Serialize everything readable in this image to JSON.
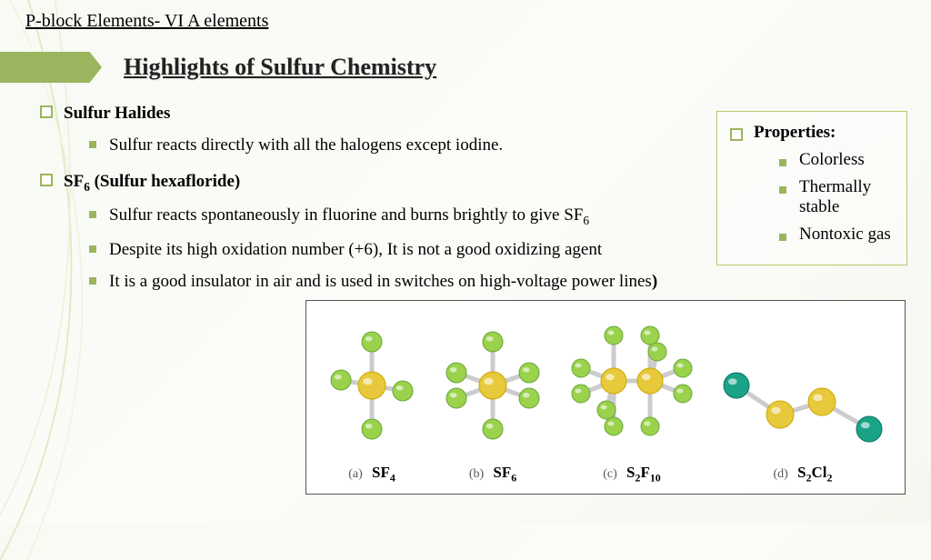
{
  "header": "P-block Elements- VI A  elements",
  "title": "Highlights of Sulfur Chemistry",
  "colors": {
    "accent": "#9ab55d",
    "box_border": "#b7c96a",
    "sulfur": "#e7c93b",
    "sulfur_edge": "#c9a800",
    "fluorine": "#9ad24c",
    "fluorine_edge": "#6aa53a",
    "chlorine": "#1aa387",
    "chlorine_edge": "#0c7460",
    "bond": "#cccccc"
  },
  "content": {
    "items": [
      {
        "heading": "Sulfur Halides",
        "points": [
          "Sulfur reacts directly with all the halogens except iodine."
        ]
      },
      {
        "heading_html": "SF<sub>6</sub> (Sulfur hexafloride)",
        "points_html": [
          "Sulfur reacts spontaneously in fluorine and burns brightly to give SF<sub>6</sub>",
          " Despite its high oxidation number (+6),  It is not a good oxidizing agent",
          "It is a good insulator in air and is used in switches on high-voltage power lines<b>)</b>"
        ]
      }
    ]
  },
  "properties": {
    "heading": "Properties:",
    "items": [
      "Colorless",
      "Thermally stable",
      "Nontoxic gas"
    ]
  },
  "molecules": [
    {
      "tag": "(a)",
      "formula": "SF<sub>4</sub>",
      "kind": "sf4"
    },
    {
      "tag": "(b)",
      "formula": "SF<sub>6</sub>",
      "kind": "sf6"
    },
    {
      "tag": "(c)",
      "formula": "S<sub>2</sub>F<sub>10</sub>",
      "kind": "s2f10"
    },
    {
      "tag": "(d)",
      "formula": "S<sub>2</sub>Cl<sub>2</sub>",
      "kind": "s2cl2"
    }
  ]
}
